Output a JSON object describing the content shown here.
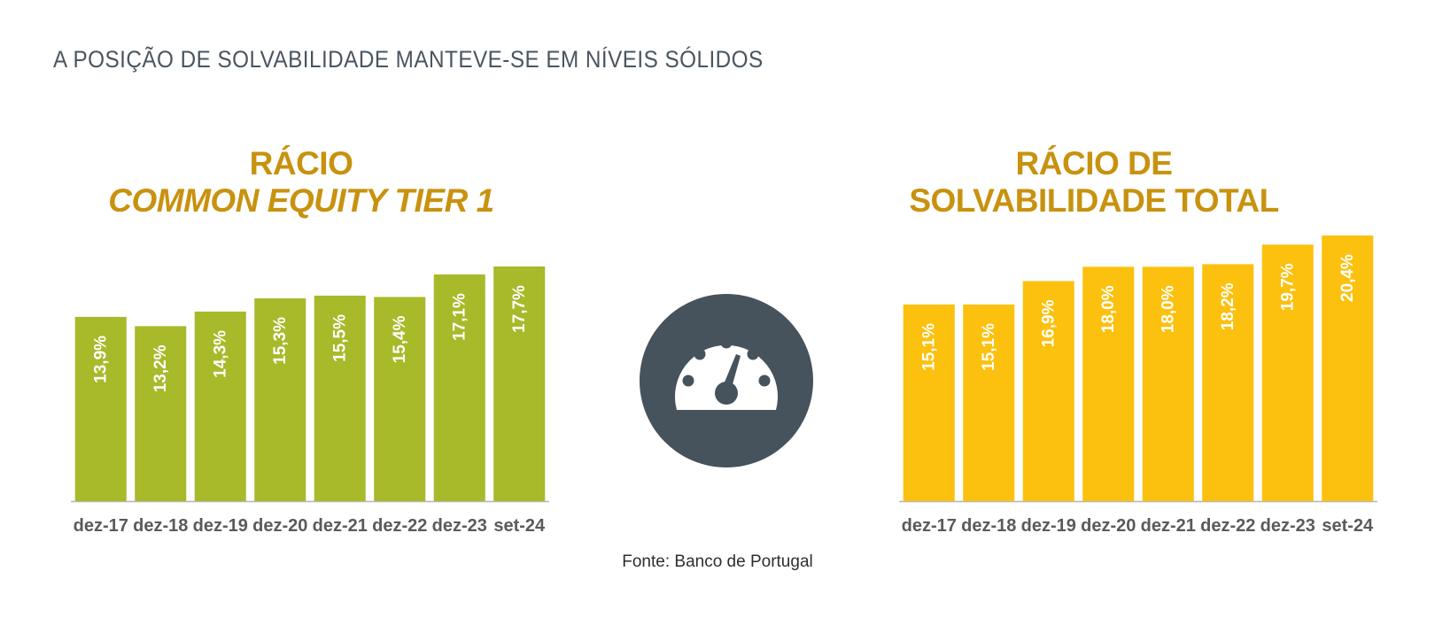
{
  "headline": "A POSIÇÃO DE SOLVABILIDADE MANTEVE-SE EM NÍVEIS SÓLIDOS",
  "source": "Fonte: Banco de Portugal",
  "colors": {
    "cet1_bars": "#a8b92a",
    "total_bars": "#fcc10f",
    "title": "#c8920f",
    "gauge": "#46525c",
    "axis_labels": "#5a5a5a"
  },
  "icons": {
    "center": "speedometer-icon"
  },
  "chart_data": [
    {
      "type": "bar",
      "title_line1": "RÁCIO",
      "title_line2": "COMMON EQUITY TIER 1",
      "categories": [
        "dez-17",
        "dez-18",
        "dez-19",
        "dez-20",
        "dez-21",
        "dez-22",
        "dez-23",
        "set-24"
      ],
      "values": [
        13.9,
        13.2,
        14.3,
        15.3,
        15.5,
        15.4,
        17.1,
        17.7
      ],
      "data_labels": [
        "13,9%",
        "13,2%",
        "14,3%",
        "15,3%",
        "15,5%",
        "15,4%",
        "17,1%",
        "17,7%"
      ],
      "grid": false,
      "legend": "none"
    },
    {
      "type": "bar",
      "title_line1": "RÁCIO DE",
      "title_line2": "SOLVABILIDADE TOTAL",
      "categories": [
        "dez-17",
        "dez-18",
        "dez-19",
        "dez-20",
        "dez-21",
        "dez-22",
        "dez-23",
        "set-24"
      ],
      "values": [
        15.1,
        15.1,
        16.9,
        18.0,
        18.0,
        18.2,
        19.7,
        20.4
      ],
      "data_labels": [
        "15,1%",
        "15,1%",
        "16,9%",
        "18,0%",
        "18,0%",
        "18,2%",
        "19,7%",
        "20,4%"
      ],
      "grid": false,
      "legend": "none"
    }
  ]
}
